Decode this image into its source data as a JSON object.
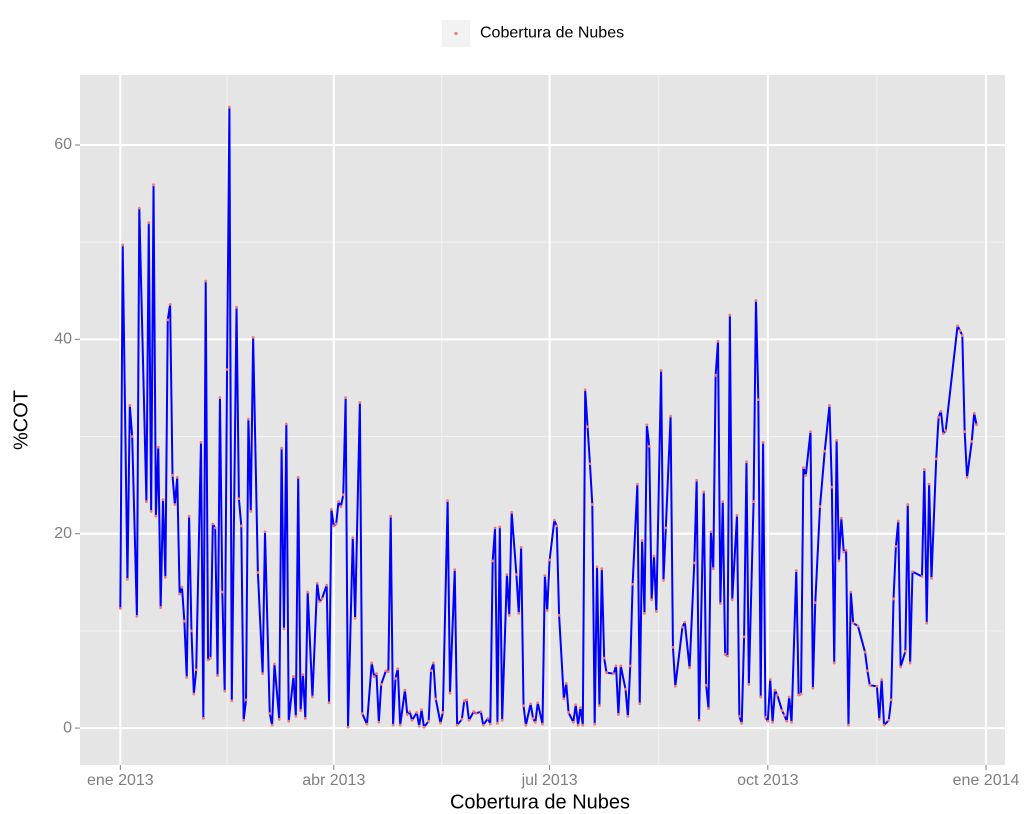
{
  "chart_data": {
    "type": "line",
    "xlabel": "Cobertura de Nubes",
    "ylabel": "%COT",
    "legend": "top",
    "grid": true,
    "xlim": [
      -17,
      373
    ],
    "ylim": [
      -3.8,
      67.2
    ],
    "xticks": [
      {
        "value": 0,
        "label": "ene 2013"
      },
      {
        "value": 90,
        "label": "abr 2013"
      },
      {
        "value": 181,
        "label": "jul 2013"
      },
      {
        "value": 273,
        "label": "oct 2013"
      },
      {
        "value": 365,
        "label": "ene 2014"
      }
    ],
    "xticks_minor": [
      45,
      135.5,
      227,
      319
    ],
    "yticks": [
      0,
      20,
      40,
      60
    ],
    "yticks_minor": [
      10,
      30,
      50
    ],
    "x": [
      0,
      1,
      3,
      4,
      5,
      7,
      8,
      11,
      12,
      13,
      14,
      15,
      16,
      17,
      18,
      19,
      20,
      21,
      22,
      23,
      24,
      25,
      26,
      27,
      28,
      29,
      30,
      31,
      32,
      34,
      35,
      36,
      37,
      38,
      39,
      40,
      41,
      42,
      43,
      44,
      45,
      46,
      47,
      49,
      50,
      51,
      52,
      53,
      54,
      55,
      56,
      58,
      60,
      61,
      63,
      64,
      65,
      67,
      68,
      69,
      70,
      71,
      73,
      74,
      75,
      76,
      77,
      78,
      79,
      81,
      83,
      84,
      85,
      87,
      88,
      89,
      90,
      91,
      92,
      93,
      94,
      95,
      96,
      98,
      99,
      101,
      102,
      104,
      106,
      107,
      108,
      109,
      110,
      112,
      113,
      114,
      115,
      116,
      117,
      118,
      120,
      121,
      122,
      123,
      125,
      126,
      127,
      128,
      130,
      131,
      132,
      133,
      135,
      136,
      138,
      139,
      141,
      142,
      144,
      145,
      146,
      147,
      149,
      150,
      152,
      153,
      155,
      156,
      157,
      158,
      159,
      160,
      161,
      163,
      164,
      165,
      167,
      168,
      169,
      170,
      171,
      173,
      174,
      175,
      176,
      178,
      179,
      180,
      181,
      183,
      184,
      185,
      187,
      188,
      189,
      191,
      192,
      193,
      194,
      195,
      196,
      197,
      198,
      199,
      200,
      201,
      202,
      203,
      204,
      205,
      208,
      209,
      210,
      211,
      213,
      214,
      215,
      216,
      218,
      219,
      220,
      221,
      222,
      223,
      224,
      225,
      226,
      228,
      229,
      230,
      232,
      233,
      234,
      237,
      238,
      240,
      242,
      243,
      244,
      246,
      247,
      248,
      249,
      250,
      251,
      252,
      253,
      254,
      255,
      256,
      257,
      258,
      260,
      261,
      262,
      263,
      264,
      265,
      267,
      268,
      269,
      270,
      271,
      272,
      273,
      274,
      275,
      276,
      277,
      279,
      280,
      281,
      282,
      283,
      285,
      286,
      287,
      288,
      289,
      291,
      292,
      293,
      295,
      297,
      299,
      300,
      301,
      302,
      303,
      304,
      305,
      306,
      307,
      308,
      309,
      311,
      314,
      315,
      316,
      319,
      320,
      321,
      322,
      324,
      325,
      326,
      327,
      328,
      329,
      331,
      332,
      333,
      334,
      338,
      339,
      340,
      341,
      342,
      344,
      345,
      346,
      347,
      348,
      353,
      354,
      355,
      356,
      357,
      359,
      360,
      361
    ],
    "series": [
      {
        "name": "Cobertura de Nubes",
        "color": "#0000ff",
        "point_color": "#f8766d",
        "values": [
          12.3,
          49.7,
          15.3,
          33.2,
          30,
          11.5,
          53.5,
          23.3,
          52,
          22.3,
          55.9,
          21.8,
          28.9,
          12.4,
          23.5,
          15.5,
          42,
          43.6,
          26,
          23,
          25.8,
          13.8,
          14.5,
          11,
          5.2,
          21.8,
          10,
          3.5,
          6,
          29.4,
          1,
          46,
          7,
          7.2,
          21,
          20.6,
          5.4,
          34,
          14,
          3.8,
          36.9,
          63.9,
          2.8,
          43.3,
          23.6,
          20.8,
          0.8,
          2.9,
          31.8,
          22.3,
          40.2,
          16,
          5.6,
          20.2,
          1.5,
          0.3,
          6.6,
          0.9,
          28.8,
          10.2,
          31.3,
          0.7,
          5.3,
          1.2,
          25.8,
          1.8,
          5.5,
          1,
          14,
          3.2,
          14.9,
          13,
          13.3,
          14.7,
          2.6,
          22.5,
          20.8,
          21,
          23.3,
          22.8,
          24,
          34,
          0.1,
          19.6,
          11.3,
          33.5,
          1.5,
          0.4,
          6.7,
          5.3,
          5.6,
          0.6,
          4.5,
          5.9,
          5.8,
          21.8,
          0.3,
          5.1,
          6.1,
          0.3,
          3.9,
          1.4,
          1.7,
          0.8,
          1.6,
          0.2,
          1.9,
          0.1,
          0.7,
          5.9,
          6.7,
          3,
          0.5,
          1.6,
          23.4,
          3.6,
          16.3,
          0.3,
          0.9,
          2.8,
          2.9,
          0.8,
          1.7,
          1.5,
          1.7,
          0.3,
          1,
          0.4,
          17.2,
          20.6,
          0.5,
          20.7,
          0.8,
          15.8,
          11.6,
          22.2,
          15.8,
          11.8,
          18.6,
          2.3,
          0.3,
          2.5,
          1,
          0.6,
          2.6,
          0.4,
          15.7,
          12.1,
          17.3,
          21.4,
          20.8,
          11.6,
          3,
          4.6,
          1.6,
          0.6,
          2.4,
          0.3,
          2.1,
          0.3,
          34.8,
          31,
          27.2,
          23,
          0.4,
          16.6,
          2.3,
          16.4,
          7.2,
          5.7,
          5.6,
          6.4,
          1.4,
          6.4,
          4,
          1.2,
          6.4,
          14.8,
          25.1,
          2.5,
          19.3,
          11.8,
          31.2,
          29,
          13.2,
          17.7,
          12,
          36.8,
          15.2,
          20.6,
          32.1,
          8.3,
          4.3,
          10.4,
          10.9,
          6.2,
          17,
          25.5,
          0.8,
          24.3,
          4.4,
          2,
          20.2,
          16.4,
          36.3,
          39.8,
          12.8,
          23.3,
          7.6,
          7.4,
          42.5,
          13.2,
          21.9,
          1.2,
          0.5,
          9.4,
          27.4,
          4.5,
          23.3,
          44,
          33.8,
          3.2,
          29.4,
          1.1,
          0.7,
          5,
          0.6,
          3.9,
          3.4,
          1.8,
          1.3,
          0.7,
          3.2,
          0.6,
          16.2,
          3.4,
          3.5,
          26.8,
          26,
          30.5,
          4.1,
          12.9,
          22.8,
          28.5,
          33.2,
          24.8,
          6.7,
          29.6,
          17.2,
          21.6,
          18.1,
          18.3,
          0.3,
          14,
          10.8,
          10.5,
          7.8,
          5.9,
          4.4,
          4.3,
          0.9,
          5,
          0.3,
          0.8,
          2.9,
          13.3,
          18.7,
          21.3,
          6.3,
          7.9,
          23,
          6.7,
          16.1,
          15.6,
          26.6,
          10.8,
          25.1,
          15.4,
          27.7,
          32,
          32.6,
          30.3,
          30.6,
          41.4,
          40.9,
          40.4,
          30.5,
          25.8,
          29.5,
          32.4,
          31.2
        ]
      }
    ]
  }
}
